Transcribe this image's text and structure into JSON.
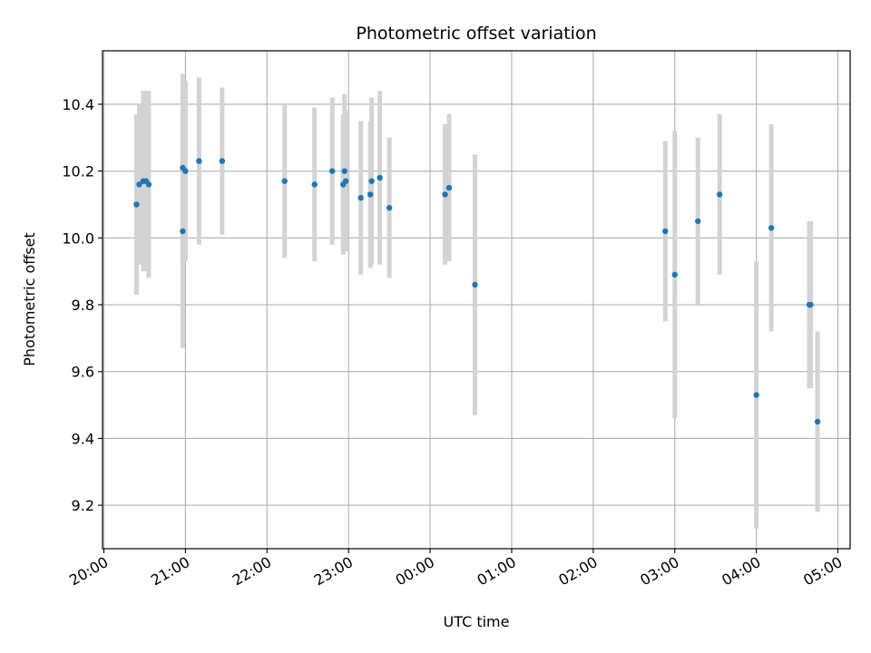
{
  "chart_data": {
    "type": "scatter",
    "title": "Photometric offset variation",
    "xlabel": "UTC time",
    "ylabel": "Photometric offset",
    "x_tick_labels": [
      "20:00",
      "21:00",
      "22:00",
      "23:00",
      "00:00",
      "01:00",
      "02:00",
      "03:00",
      "04:00",
      "05:00"
    ],
    "y_ticks": [
      9.2,
      9.4,
      9.6,
      9.8,
      10.0,
      10.2,
      10.4
    ],
    "y_tick_labels": [
      "9.2",
      "9.4",
      "9.6",
      "9.8",
      "10.0",
      "10.2",
      "10.4"
    ],
    "xlim": [
      "19:59",
      "05:09"
    ],
    "ylim": [
      9.07,
      10.56
    ],
    "grid": true,
    "point_color": "#1f77b4",
    "errorbar_color": "#d3d3d3",
    "points": [
      {
        "t": "20:24",
        "y": 10.1,
        "err": 0.27
      },
      {
        "t": "20:26",
        "y": 10.16,
        "err": 0.24
      },
      {
        "t": "20:29",
        "y": 10.17,
        "err": 0.27
      },
      {
        "t": "20:31",
        "y": 10.17,
        "err": 0.27
      },
      {
        "t": "20:33",
        "y": 10.16,
        "err": 0.28
      },
      {
        "t": "20:58",
        "y": 10.02,
        "err": 0.35
      },
      {
        "t": "20:58",
        "y": 10.21,
        "err": 0.28
      },
      {
        "t": "21:00",
        "y": 10.2,
        "err": 0.27
      },
      {
        "t": "21:10",
        "y": 10.23,
        "err": 0.25
      },
      {
        "t": "21:27",
        "y": 10.23,
        "err": 0.22
      },
      {
        "t": "22:13",
        "y": 10.17,
        "err": 0.23
      },
      {
        "t": "22:35",
        "y": 10.16,
        "err": 0.23
      },
      {
        "t": "22:48",
        "y": 10.2,
        "err": 0.22
      },
      {
        "t": "22:56",
        "y": 10.16,
        "err": 0.21
      },
      {
        "t": "22:57",
        "y": 10.2,
        "err": 0.23
      },
      {
        "t": "22:58",
        "y": 10.17,
        "err": 0.21
      },
      {
        "t": "23:09",
        "y": 10.12,
        "err": 0.23
      },
      {
        "t": "23:16",
        "y": 10.13,
        "err": 0.22
      },
      {
        "t": "23:17",
        "y": 10.17,
        "err": 0.25
      },
      {
        "t": "23:23",
        "y": 10.18,
        "err": 0.26
      },
      {
        "t": "23:30",
        "y": 10.09,
        "err": 0.21
      },
      {
        "t": "00:11",
        "y": 10.13,
        "err": 0.21
      },
      {
        "t": "00:14",
        "y": 10.15,
        "err": 0.22
      },
      {
        "t": "00:33",
        "y": 9.86,
        "err": 0.39
      },
      {
        "t": "02:53",
        "y": 10.02,
        "err": 0.27
      },
      {
        "t": "03:00",
        "y": 9.89,
        "err": 0.43
      },
      {
        "t": "03:17",
        "y": 10.05,
        "err": 0.25
      },
      {
        "t": "03:33",
        "y": 10.13,
        "err": 0.24
      },
      {
        "t": "04:00",
        "y": 9.53,
        "err": 0.4
      },
      {
        "t": "04:11",
        "y": 10.03,
        "err": 0.31
      },
      {
        "t": "04:39",
        "y": 9.8,
        "err": 0.25
      },
      {
        "t": "04:40",
        "y": 9.8,
        "err": 0.25
      },
      {
        "t": "04:45",
        "y": 9.45,
        "err": 0.27
      }
    ]
  }
}
